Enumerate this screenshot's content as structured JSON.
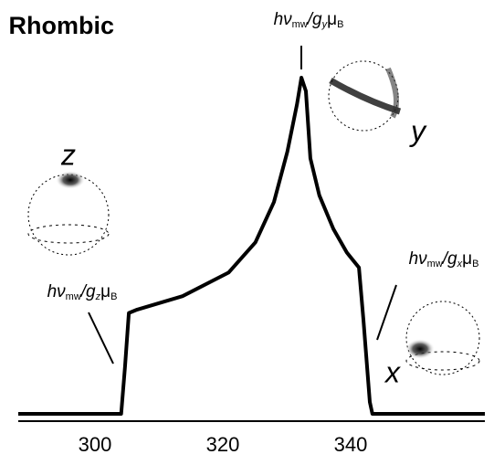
{
  "chart_data": {
    "type": "line",
    "title": "Rhombic",
    "x": [
      288,
      304.1,
      304.7,
      305.3,
      306.6,
      313.7,
      320.9,
      325.1,
      328,
      330.1,
      331.6,
      332.3,
      333,
      333.7,
      335.1,
      337.3,
      339.4,
      341.3,
      342,
      343,
      343.4,
      361
    ],
    "values": [
      0,
      0,
      14,
      30,
      31,
      35,
      42,
      51,
      63,
      78,
      92,
      100,
      96,
      76,
      65,
      55,
      48,
      43.5,
      28,
      3.5,
      0,
      0
    ],
    "color": "#000000",
    "xlim": [
      288,
      361
    ],
    "xticks": [
      300,
      320,
      340
    ],
    "ylim": [
      0,
      100
    ],
    "annotations": [
      {
        "parts": [
          "hν",
          "mw",
          "/g",
          "y",
          "μ",
          "B"
        ]
      },
      {
        "parts": [
          "hν",
          "mw",
          "/g",
          "z",
          "μ",
          "B"
        ]
      },
      {
        "parts": [
          "hν",
          "mw",
          "/g",
          "x",
          "μ",
          "B"
        ]
      }
    ],
    "sphere_labels": [
      "z",
      "y",
      "x"
    ]
  }
}
